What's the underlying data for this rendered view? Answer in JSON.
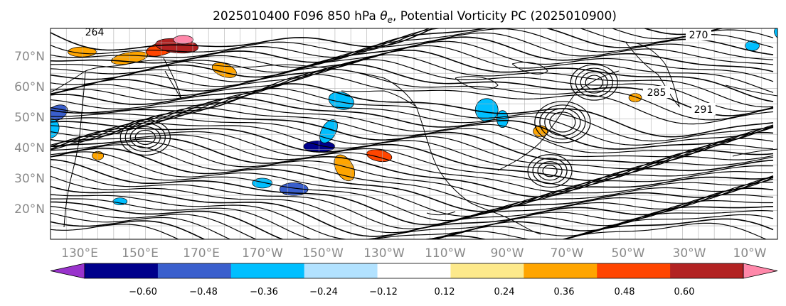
{
  "chart_data": {
    "type": "contour",
    "title": "2025010400 F096 850 hPa θe, Potential Vorticity PC (2025010900)",
    "title_parts": {
      "pre": "2025010400 F096 850 hPa ",
      "sym": "θ",
      "sub": "e",
      "post": ", Potential Vorticity PC (2025010900)"
    },
    "x_ticks": [
      "130°E",
      "150°E",
      "170°E",
      "170°W",
      "150°W",
      "130°W",
      "110°W",
      "90°W",
      "70°W",
      "50°W",
      "30°W",
      "10°W"
    ],
    "y_ticks": [
      "70°N",
      "60°N",
      "50°N",
      "40°N",
      "30°N",
      "20°N"
    ],
    "contour_labels": [
      "264",
      "270",
      "285",
      "291"
    ],
    "colorbar": {
      "ticks": [
        "−0.60",
        "−0.48",
        "−0.36",
        "−0.24",
        "−0.12",
        "0.12",
        "0.24",
        "0.36",
        "0.48",
        "0.60"
      ],
      "levels": [
        -0.72,
        -0.6,
        -0.48,
        -0.36,
        -0.24,
        -0.12,
        0.12,
        0.24,
        0.36,
        0.48,
        0.6,
        0.72
      ],
      "colors": [
        "#9933cc",
        "#00008b",
        "#3a5fcd",
        "#00bfff",
        "#b2e2ff",
        "#ffffff",
        "#fde98b",
        "#ffa500",
        "#ff4500",
        "#b22222",
        "#ff88aa"
      ],
      "extend": "both"
    },
    "shaded_patches": [
      {
        "lon": 155,
        "lat": 73,
        "value": 0.4
      },
      {
        "lon": 160,
        "lat": 74,
        "value": 0.55
      },
      {
        "lon": 162,
        "lat": 76,
        "value": 0.65
      },
      {
        "lon": 145,
        "lat": 70,
        "value": 0.3
      },
      {
        "lon": 175,
        "lat": 66,
        "value": 0.3
      },
      {
        "lon": 130,
        "lat": 72,
        "value": 0.3
      },
      {
        "lon": 122,
        "lat": 52,
        "value": -0.4
      },
      {
        "lon": 120,
        "lat": 47,
        "value": -0.3
      },
      {
        "lon": -155,
        "lat": 41,
        "value": -0.5
      },
      {
        "lon": -152,
        "lat": 46,
        "value": -0.3
      },
      {
        "lon": -147,
        "lat": 34,
        "value": 0.35
      },
      {
        "lon": -136,
        "lat": 38,
        "value": 0.4
      },
      {
        "lon": -163,
        "lat": 27,
        "value": -0.45
      },
      {
        "lon": -173,
        "lat": 29,
        "value": -0.25
      },
      {
        "lon": -148,
        "lat": 56,
        "value": -0.3
      },
      {
        "lon": -102,
        "lat": 53,
        "value": -0.3
      },
      {
        "lon": -97,
        "lat": 50,
        "value": -0.25
      },
      {
        "lon": -8,
        "lat": 78,
        "value": -0.3
      },
      {
        "lon": -18,
        "lat": 74,
        "value": -0.25
      },
      {
        "lon": -55,
        "lat": 57,
        "value": 0.3
      },
      {
        "lon": -85,
        "lat": 46,
        "value": 0.25
      },
      {
        "lon": 142,
        "lat": 23,
        "value": -0.25
      },
      {
        "lon": 135,
        "lat": 38,
        "value": 0.3
      }
    ]
  }
}
